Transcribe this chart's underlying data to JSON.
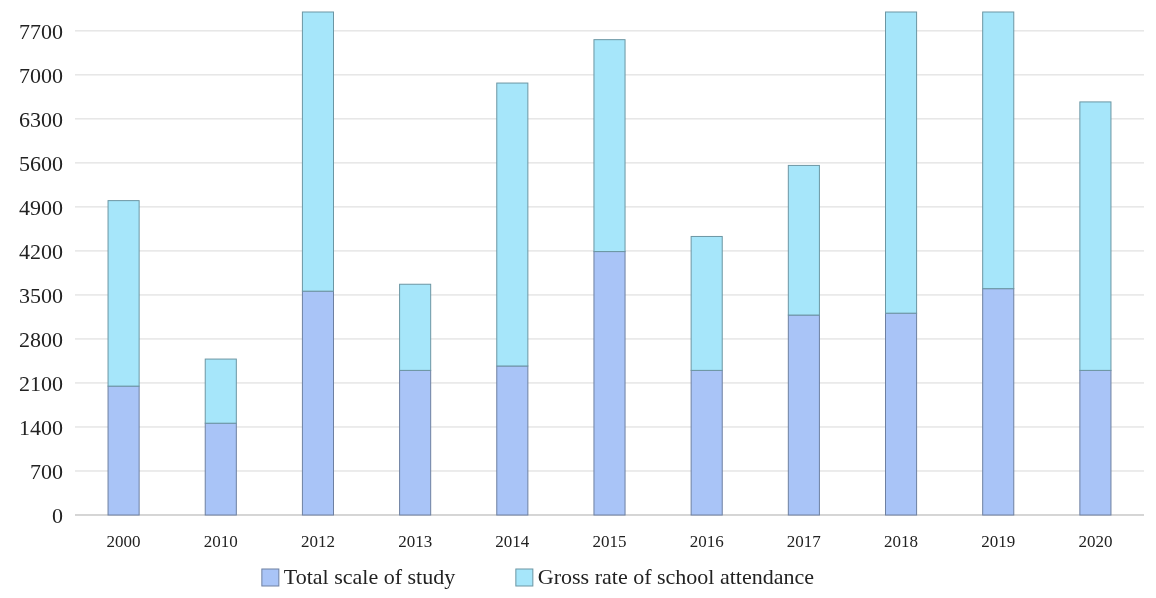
{
  "chart_data": {
    "type": "bar",
    "stacked": true,
    "categories": [
      "2000",
      "2010",
      "2012",
      "2013",
      "2014",
      "2015",
      "2016",
      "2017",
      "2018",
      "2019",
      "2020"
    ],
    "series": [
      {
        "name": "Total scale of study",
        "color": "#a9c4f7",
        "values": [
          2050,
          1460,
          3560,
          2300,
          2370,
          4190,
          2300,
          3180,
          3210,
          3600,
          2300
        ]
      },
      {
        "name": "Gross rate of school attendance",
        "color": "#a6e6fa",
        "values": [
          2950,
          1020,
          4440,
          1370,
          4500,
          3370,
          2130,
          2380,
          4790,
          4400,
          4270
        ]
      }
    ],
    "ylim": [
      0,
      8000
    ],
    "yticks": [
      0,
      700,
      1400,
      2100,
      2800,
      3500,
      4200,
      4900,
      5600,
      6300,
      7000,
      7700
    ],
    "grid": "y",
    "legend": "bottom"
  }
}
